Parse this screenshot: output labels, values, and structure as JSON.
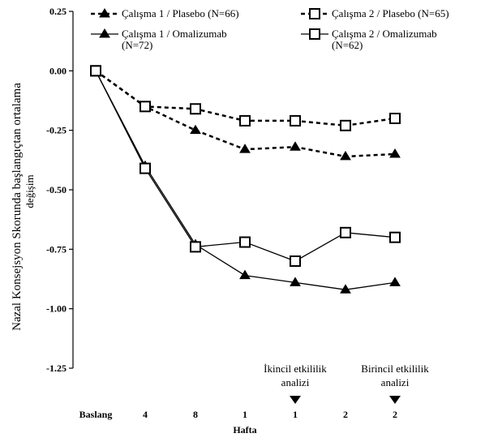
{
  "chart_data": {
    "type": "line",
    "title": "",
    "xlabel": "Hafta",
    "ylabel": "Nazal Konsejsyon Skorunda başlangıçtan ortalama",
    "ylabel_line2": "değişim",
    "categories": [
      "Baslang",
      "4",
      "8",
      "1",
      "1",
      "2",
      "2"
    ],
    "ylim": [
      -1.25,
      0.25
    ],
    "yticks": [
      "0.25",
      "0.00",
      "-0.25",
      "-0.50",
      "-0.75",
      "-1.00",
      "-1.25"
    ],
    "legend_position": "top",
    "grid": false,
    "series": [
      {
        "name": "Çalışma 1 / Plasebo (N=66)",
        "marker": "triangle",
        "dashed": true,
        "values": [
          0.0,
          -0.15,
          -0.25,
          -0.33,
          -0.32,
          -0.36,
          -0.35
        ]
      },
      {
        "name": "Çalışma 2 / Plasebo (N=65)",
        "marker": "square",
        "dashed": true,
        "values": [
          0.0,
          -0.15,
          -0.16,
          -0.21,
          -0.21,
          -0.23,
          -0.2
        ]
      },
      {
        "name": "Çalışma 1 / Omalizumab",
        "name_line2": "(N=72)",
        "marker": "triangle",
        "dashed": false,
        "values": [
          0.0,
          -0.4,
          -0.73,
          -0.86,
          -0.89,
          -0.92,
          -0.89
        ]
      },
      {
        "name": "Çalışma 2 / Omalizumab",
        "name_line2": "(N=62)",
        "marker": "square",
        "dashed": false,
        "values": [
          0.0,
          -0.41,
          -0.74,
          -0.72,
          -0.8,
          -0.68,
          -0.7
        ]
      }
    ],
    "annotations": [
      {
        "line1": "İkincil etkililik",
        "line2": "analizi",
        "category_index": 4
      },
      {
        "line1": "Birincil etkililik",
        "line2": "analizi",
        "category_index": 6
      }
    ]
  }
}
